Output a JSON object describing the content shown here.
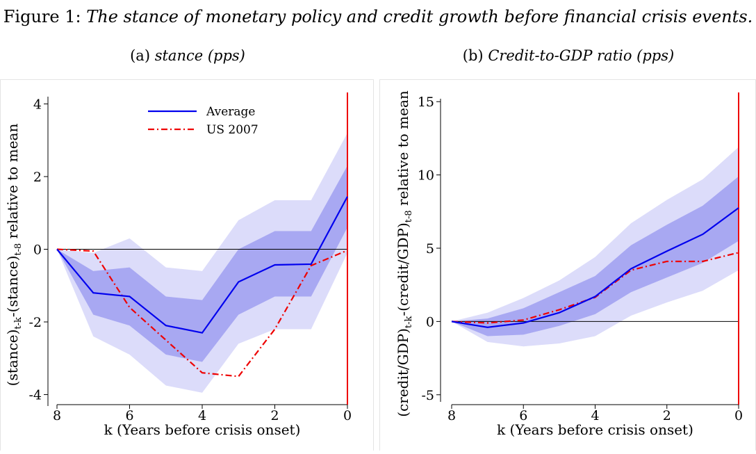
{
  "figure": {
    "label": "Figure 1:",
    "caption": "The stance of monetary policy and credit growth before financial crisis events."
  },
  "colors": {
    "average": "#0000ee",
    "us2007": "#ee0000",
    "band_outer": "#dcdcfa",
    "band_inner": "#a8a8f2",
    "vline": "#ee0000"
  },
  "chart_data": [
    {
      "type": "line",
      "panel_label": "(a)",
      "title": "stance (pps)",
      "xlabel": "k (Years before crisis onset)",
      "ylabel": "(stance)t-k-(stance)t-8 relative to mean",
      "ylabel_parts": [
        "(stance)",
        "t-k",
        "-(stance)",
        "t-8",
        " relative to mean"
      ],
      "x": [
        8,
        7,
        6,
        5,
        4,
        3,
        2,
        1,
        0
      ],
      "xlim": [
        8,
        0
      ],
      "ylim": [
        -4.2,
        4.2
      ],
      "xticks": [
        "8",
        "6",
        "4",
        "2",
        "0"
      ],
      "yticks": [
        "4",
        "2",
        "0",
        "-2",
        "-4"
      ],
      "series": [
        {
          "name": "Average",
          "values": [
            0,
            -1.2,
            -1.3,
            -2.1,
            -2.3,
            -0.9,
            -0.43,
            -0.41,
            1.45
          ]
        },
        {
          "name": "US 2007",
          "values": [
            0,
            -0.05,
            -1.6,
            -2.5,
            -3.4,
            -3.5,
            -2.2,
            -0.45,
            -0.03
          ]
        }
      ],
      "band_inner": {
        "lower": [
          0,
          -1.8,
          -2.1,
          -2.9,
          -3.1,
          -1.8,
          -1.3,
          -1.3,
          0.6
        ],
        "upper": [
          0,
          -0.6,
          -0.5,
          -1.3,
          -1.4,
          0,
          0.5,
          0.5,
          2.3
        ]
      },
      "band_outer": {
        "lower": [
          0,
          -2.4,
          -2.9,
          -3.75,
          -3.95,
          -2.6,
          -2.2,
          -2.2,
          -0.1
        ],
        "upper": [
          0,
          -0.1,
          0.3,
          -0.5,
          -0.6,
          0.8,
          1.35,
          1.35,
          3.2
        ]
      },
      "hline": 0,
      "vline": 0,
      "legend": {
        "placement": "top-center",
        "entries": [
          "Average",
          "US 2007"
        ]
      }
    },
    {
      "type": "line",
      "panel_label": "(b)",
      "title": "Credit-to-GDP ratio (pps)",
      "xlabel": "k (Years before crisis onset)",
      "ylabel": "(credit/GDP)t-k-(credit/GDP)t-8 relative to mean",
      "ylabel_parts": [
        "(credit/GDP)",
        "t-k",
        "-(credit/GDP)",
        "t-8",
        " relative to mean"
      ],
      "x": [
        8,
        7,
        6,
        5,
        4,
        3,
        2,
        1,
        0
      ],
      "xlim": [
        8,
        0
      ],
      "ylim": [
        -5.2,
        15.2
      ],
      "xticks": [
        "8",
        "6",
        "4",
        "2",
        "0"
      ],
      "yticks": [
        "15",
        "10",
        "5",
        "0",
        "-5"
      ],
      "series": [
        {
          "name": "Average",
          "values": [
            0,
            -0.4,
            -0.1,
            0.6,
            1.7,
            3.6,
            4.8,
            5.95,
            7.75
          ]
        },
        {
          "name": "US 2007",
          "values": [
            0,
            -0.1,
            0.1,
            0.8,
            1.65,
            3.5,
            4.1,
            4.1,
            4.7
          ]
        }
      ],
      "band_inner": {
        "lower": [
          0,
          -1.0,
          -0.9,
          -0.3,
          0.5,
          2.0,
          3.0,
          4.0,
          5.5
        ],
        "upper": [
          0,
          0.2,
          0.9,
          2.0,
          3.1,
          5.2,
          6.6,
          7.9,
          9.9
        ]
      },
      "band_outer": {
        "lower": [
          0,
          -1.4,
          -1.7,
          -1.5,
          -1.0,
          0.4,
          1.3,
          2.1,
          3.5
        ],
        "upper": [
          0,
          0.6,
          1.6,
          2.8,
          4.4,
          6.7,
          8.3,
          9.7,
          11.9
        ]
      },
      "hline": 0,
      "vline": 0,
      "legend": null
    }
  ]
}
